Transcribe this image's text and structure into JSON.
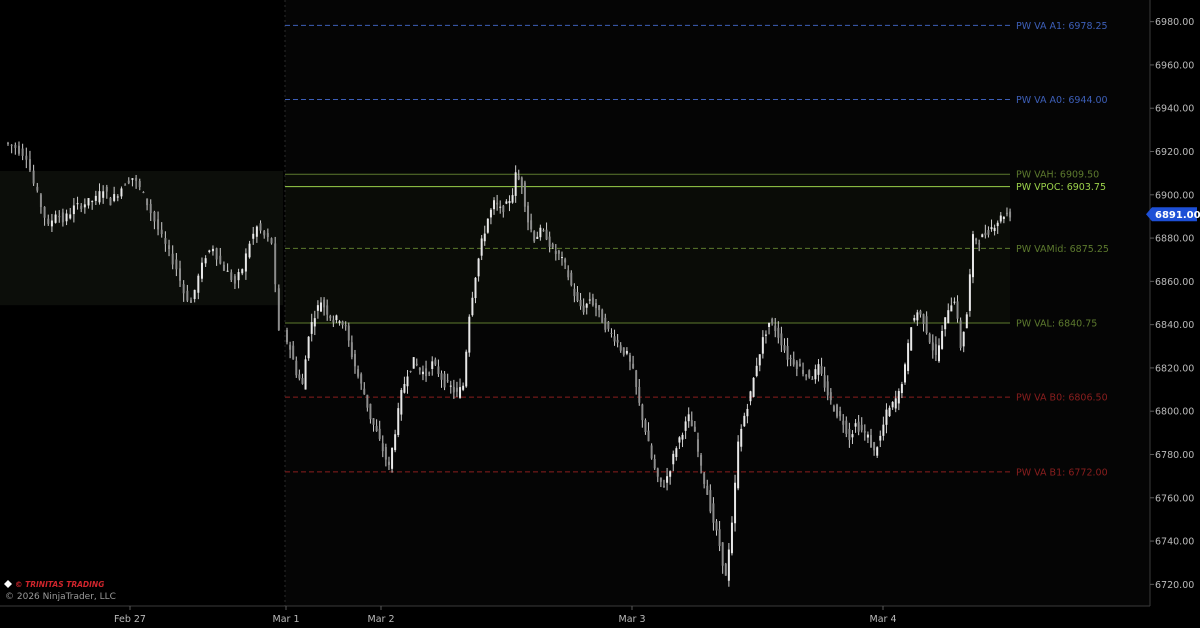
{
  "chart_data": {
    "type": "candlestick",
    "y_axis": {
      "side": "right",
      "range": [
        6710,
        6990
      ],
      "ticks": [
        "6980.00",
        "6960.00",
        "6940.00",
        "6920.00",
        "6900.00",
        "6880.00",
        "6860.00",
        "6840.00",
        "6820.00",
        "6800.00",
        "6780.00",
        "6760.00",
        "6740.00",
        "6720.00"
      ]
    },
    "x_axis": {
      "labels": [
        "Feb 27",
        "Mar 1",
        "Mar 2",
        "Mar 3",
        "Mar 4"
      ]
    },
    "session_separator_after": "Feb 27",
    "previous_value_area_band": {
      "high": 6911,
      "low": 6849
    },
    "levels": [
      {
        "label": "PW VA A1: 6978.25",
        "price": 6978.25,
        "color": "#3d5fb8",
        "style": "dashed"
      },
      {
        "label": "PW VA A0: 6944.00",
        "price": 6944.0,
        "color": "#3d5fb8",
        "style": "dashed"
      },
      {
        "label": "PW VAH: 6909.50",
        "price": 6909.5,
        "color": "#5d7a2e",
        "style": "solid"
      },
      {
        "label": "PW VPOC: 6903.75",
        "price": 6903.75,
        "color": "#9bd14a",
        "style": "solid"
      },
      {
        "label": "PW VAMid: 6875.25",
        "price": 6875.25,
        "color": "#5d7a2e",
        "style": "dashed"
      },
      {
        "label": "PW VAL: 6840.75",
        "price": 6840.75,
        "color": "#5d7a2e",
        "style": "solid"
      },
      {
        "label": "PW VA B0: 6806.50",
        "price": 6806.5,
        "color": "#8a1e1e",
        "style": "dashed"
      },
      {
        "label": "PW VA B1: 6772.00",
        "price": 6772.0,
        "color": "#8a1e1e",
        "style": "dashed"
      }
    ],
    "last_price": "6891.00",
    "last_price_color": "#1d4fd6",
    "close_path": [
      [
        0,
        6924
      ],
      [
        3,
        6922
      ],
      [
        6,
        6918
      ],
      [
        8,
        6905
      ],
      [
        10,
        6895
      ],
      [
        12,
        6885
      ],
      [
        14,
        6892
      ],
      [
        16,
        6888
      ],
      [
        19,
        6894
      ],
      [
        22,
        6896
      ],
      [
        25,
        6898
      ],
      [
        27,
        6903
      ],
      [
        29,
        6897
      ],
      [
        31,
        6901
      ],
      [
        33,
        6906
      ],
      [
        35,
        6908
      ],
      [
        37,
        6903
      ],
      [
        39,
        6896
      ],
      [
        41,
        6888
      ],
      [
        43,
        6880
      ],
      [
        45,
        6873
      ],
      [
        47,
        6866
      ],
      [
        49,
        6855
      ],
      [
        51,
        6850
      ],
      [
        53,
        6862
      ],
      [
        55,
        6872
      ],
      [
        57,
        6876
      ],
      [
        59,
        6868
      ],
      [
        61,
        6864
      ],
      [
        63,
        6859
      ],
      [
        65,
        6866
      ],
      [
        67,
        6878
      ],
      [
        69,
        6885
      ],
      [
        71,
        6881
      ],
      [
        73,
        6878
      ],
      [
        75,
        6836
      ],
      [
        77,
        6829
      ],
      [
        79,
        6818
      ],
      [
        81,
        6812
      ],
      [
        83,
        6836
      ],
      [
        85,
        6845
      ],
      [
        87,
        6851
      ],
      [
        89,
        6846
      ],
      [
        91,
        6842
      ],
      [
        93,
        6843
      ],
      [
        95,
        6838
      ],
      [
        97,
        6826
      ],
      [
        99,
        6816
      ],
      [
        101,
        6808
      ],
      [
        103,
        6797
      ],
      [
        105,
        6790
      ],
      [
        107,
        6782
      ],
      [
        109,
        6774
      ],
      [
        111,
        6791
      ],
      [
        113,
        6808
      ],
      [
        115,
        6818
      ],
      [
        117,
        6823
      ],
      [
        119,
        6819
      ],
      [
        121,
        6817
      ],
      [
        123,
        6822
      ],
      [
        125,
        6818
      ],
      [
        127,
        6813
      ],
      [
        129,
        6811
      ],
      [
        131,
        6808
      ],
      [
        133,
        6812
      ],
      [
        135,
        6845
      ],
      [
        137,
        6863
      ],
      [
        139,
        6878
      ],
      [
        141,
        6889
      ],
      [
        143,
        6896
      ],
      [
        145,
        6893
      ],
      [
        147,
        6895
      ],
      [
        149,
        6901
      ],
      [
        150,
        6909
      ],
      [
        152,
        6905
      ],
      [
        154,
        6888
      ],
      [
        156,
        6880
      ],
      [
        158,
        6883
      ],
      [
        160,
        6881
      ],
      [
        162,
        6874
      ],
      [
        164,
        6872
      ],
      [
        166,
        6867
      ],
      [
        168,
        6858
      ],
      [
        170,
        6850
      ],
      [
        172,
        6847
      ],
      [
        174,
        6852
      ],
      [
        176,
        6848
      ],
      [
        178,
        6842
      ],
      [
        180,
        6837
      ],
      [
        182,
        6834
      ],
      [
        184,
        6829
      ],
      [
        186,
        6826
      ],
      [
        188,
        6818
      ],
      [
        190,
        6803
      ],
      [
        192,
        6791
      ],
      [
        194,
        6778
      ],
      [
        196,
        6768
      ],
      [
        198,
        6766
      ],
      [
        200,
        6774
      ],
      [
        202,
        6784
      ],
      [
        204,
        6791
      ],
      [
        206,
        6797
      ],
      [
        208,
        6789
      ],
      [
        210,
        6773
      ],
      [
        212,
        6762
      ],
      [
        214,
        6749
      ],
      [
        216,
        6738
      ],
      [
        218,
        6723
      ],
      [
        220,
        6747
      ],
      [
        222,
        6785
      ],
      [
        224,
        6798
      ],
      [
        226,
        6808
      ],
      [
        228,
        6822
      ],
      [
        230,
        6833
      ],
      [
        232,
        6841
      ],
      [
        234,
        6838
      ],
      [
        236,
        6832
      ],
      [
        238,
        6825
      ],
      [
        240,
        6823
      ],
      [
        242,
        6820
      ],
      [
        244,
        6817
      ],
      [
        246,
        6816
      ],
      [
        248,
        6820
      ],
      [
        250,
        6812
      ],
      [
        252,
        6804
      ],
      [
        254,
        6799
      ],
      [
        256,
        6795
      ],
      [
        258,
        6788
      ],
      [
        260,
        6794
      ],
      [
        262,
        6791
      ],
      [
        264,
        6788
      ],
      [
        266,
        6781
      ],
      [
        268,
        6788
      ],
      [
        270,
        6799
      ],
      [
        272,
        6803
      ],
      [
        274,
        6808
      ],
      [
        276,
        6820
      ],
      [
        278,
        6840
      ],
      [
        280,
        6846
      ],
      [
        282,
        6842
      ],
      [
        284,
        6833
      ],
      [
        286,
        6825
      ],
      [
        288,
        6836
      ],
      [
        290,
        6848
      ],
      [
        292,
        6852
      ],
      [
        294,
        6830
      ],
      [
        296,
        6845
      ],
      [
        298,
        6880
      ],
      [
        300,
        6879
      ],
      [
        302,
        6882
      ],
      [
        304,
        6885
      ],
      [
        306,
        6888
      ],
      [
        308,
        6891
      ],
      [
        310,
        6891
      ]
    ]
  },
  "watermark": {
    "brand": "© TRINITAS TRADING",
    "copyright": "© 2026 NinjaTrader, LLC"
  }
}
